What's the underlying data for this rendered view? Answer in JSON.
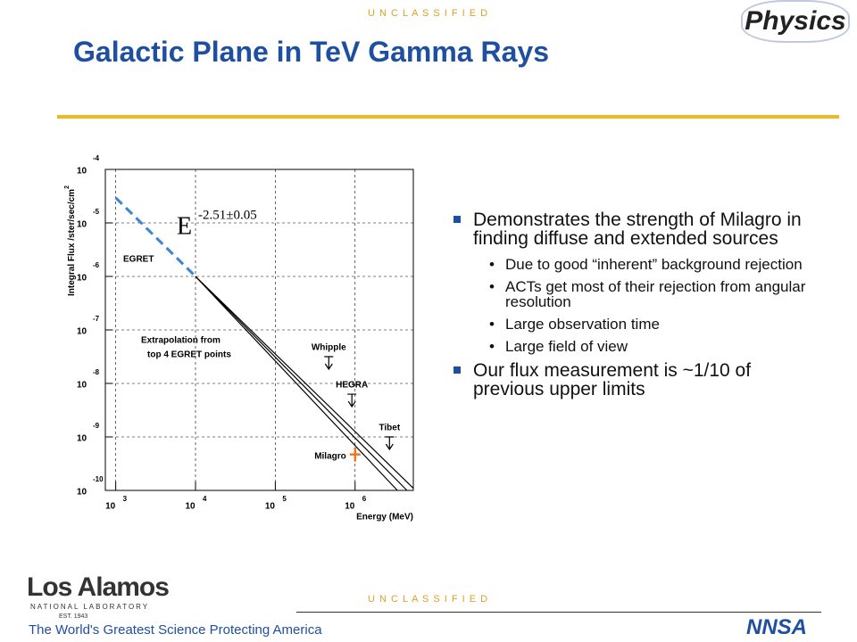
{
  "header": {
    "classification": "U N C L A S S I F I E D",
    "title": "Galactic Plane in TeV Gamma Rays",
    "logo": "Physics"
  },
  "bullets": [
    {
      "text": "Demonstrates the strength of Milagro in finding diffuse and extended sources",
      "sub": [
        "Due to good “inherent” background rejection",
        "ACTs get most of their rejection from angular resolution",
        "Large observation time",
        "Large field of view"
      ]
    },
    {
      "text": "Our flux measurement is ~1/10 of previous upper limits"
    }
  ],
  "footer": {
    "classification": "U N C L A S S I F I E D",
    "lab_name": "Los Alamos",
    "lab_subtitle": "NATIONAL LABORATORY",
    "established": "EST. 1943",
    "tagline": "The World's Greatest Science Protecting America",
    "agency": "NNSA"
  },
  "chart_data": {
    "type": "line",
    "log_x": true,
    "log_y": true,
    "grid": true,
    "xlabel": "Energy (MeV)",
    "ylabel": "Integral Flux /ster/sec/cm",
    "ylabel_superscript": "2",
    "xlim": [
      741,
      5370000
    ],
    "ylim": [
      1e-10,
      0.0001
    ],
    "xticks": [
      {
        "value": 1000,
        "label": "10",
        "exponent": "3"
      },
      {
        "value": 10000,
        "label": "10",
        "exponent": "4"
      },
      {
        "value": 100000,
        "label": "10",
        "exponent": "5"
      },
      {
        "value": 1000000,
        "label": "10",
        "exponent": "6"
      }
    ],
    "yticks": [
      {
        "value": 0.0001,
        "label": "10",
        "exponent": "-4"
      },
      {
        "value": 1e-05,
        "label": "10",
        "exponent": "-5"
      },
      {
        "value": 1e-06,
        "label": "10",
        "exponent": "-6"
      },
      {
        "value": 1e-07,
        "label": "10",
        "exponent": "-7"
      },
      {
        "value": 1e-08,
        "label": "10",
        "exponent": "-8"
      },
      {
        "value": 1e-09,
        "label": "10",
        "exponent": "-9"
      },
      {
        "value": 1e-10,
        "label": "10",
        "exponent": "-10"
      }
    ],
    "series": [
      {
        "color": "#3a84d8",
        "dashed": true,
        "x": [
          1000,
          10000
        ],
        "values": [
          2.95e-05,
          1e-06
        ]
      },
      {
        "color": "#000000",
        "x": [
          10000,
          5370000
        ],
        "values": [
          1e-06,
          1.1e-10
        ]
      },
      {
        "color": "#000000",
        "x": [
          10000,
          4470000
        ],
        "values": [
          1e-06,
          1e-10
        ]
      },
      {
        "color": "#000000",
        "x": [
          10000,
          3390000
        ],
        "values": [
          1e-06,
          1e-10
        ]
      }
    ],
    "limits": [
      {
        "name": "Whipple",
        "x": 468000,
        "y": 3.16e-08
      },
      {
        "name": "HEGRA",
        "x": 912000,
        "y": 6.3e-09
      },
      {
        "name": "Tibet",
        "x": 2700000,
        "y": 1e-09
      }
    ],
    "measurement": {
      "name": "Milagro",
      "x": 1000000,
      "y": 4.7e-10,
      "color": "#f07820"
    },
    "annotations": {
      "egret": "EGRET",
      "extrapolation_1": "Extrapolation from",
      "extrapolation_2": "top 4 EGRET points",
      "formula": "E",
      "formula_exponent": "-2.51±0.05"
    }
  }
}
